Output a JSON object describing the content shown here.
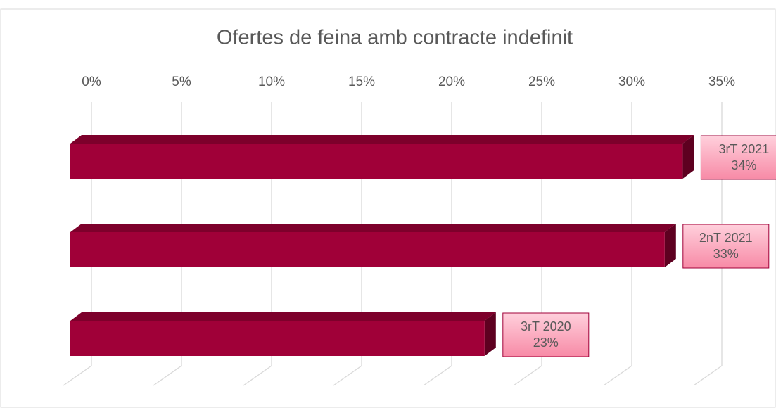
{
  "chart_data": {
    "type": "bar",
    "orientation": "horizontal",
    "title": "Ofertes de feina amb contracte indefinit",
    "categories": [
      "3rT 2021",
      "2nT 2021",
      "3rT 2020"
    ],
    "values": [
      34,
      33,
      23
    ],
    "value_labels": [
      "34%",
      "33%",
      "23%"
    ],
    "color": "#a00038",
    "xlim": [
      0,
      35
    ],
    "xticks": [
      {
        "value": 0,
        "label": "0%"
      },
      {
        "value": 5,
        "label": "5%"
      },
      {
        "value": 10,
        "label": "10%"
      },
      {
        "value": 15,
        "label": "15%"
      },
      {
        "value": 20,
        "label": "20%"
      },
      {
        "value": 25,
        "label": "25%"
      },
      {
        "value": 30,
        "label": "30%"
      },
      {
        "value": 35,
        "label": "35%"
      }
    ],
    "grid": true
  }
}
